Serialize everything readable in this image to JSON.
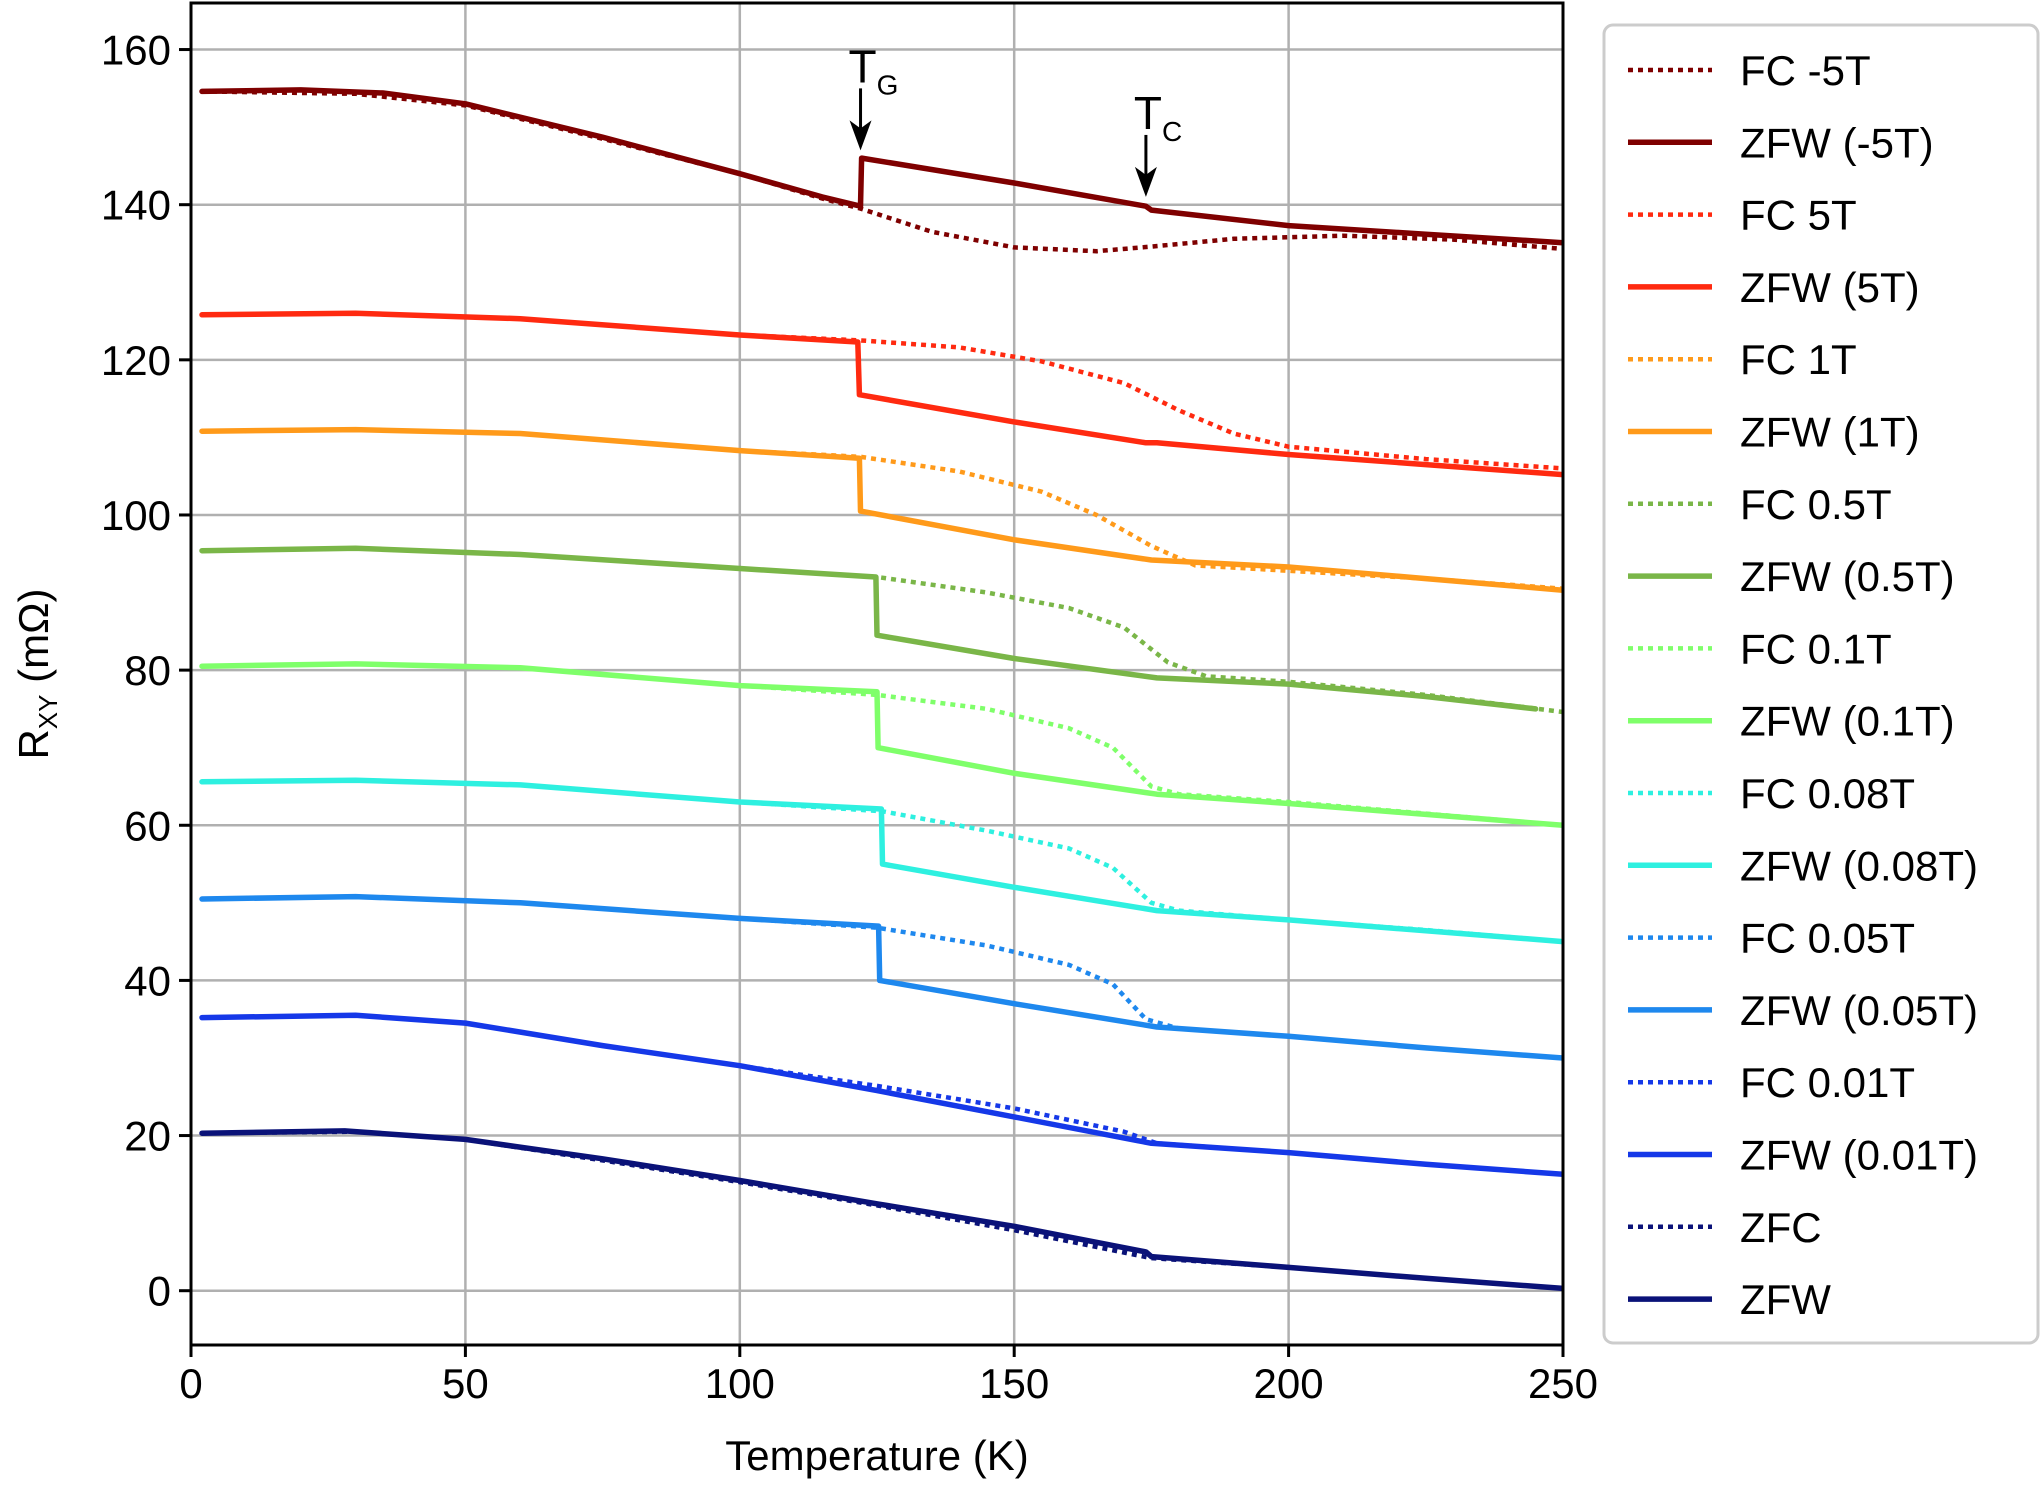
{
  "chart_data": {
    "type": "line",
    "xlabel": "Temperature (K)",
    "ylabel": {
      "main": "R",
      "sub": "XY",
      "unit": " (mΩ)"
    },
    "xlim": [
      0,
      250
    ],
    "ylim": [
      -7,
      166
    ],
    "xticks": [
      0,
      50,
      100,
      150,
      200,
      250
    ],
    "yticks": [
      0,
      20,
      40,
      60,
      80,
      100,
      120,
      140,
      160
    ],
    "grid": true,
    "legend_position": "outside-right",
    "annotations": [
      {
        "main": "T",
        "sub": "G",
        "x": 122,
        "y_tip": 147
      },
      {
        "main": "T",
        "sub": "C",
        "x": 174,
        "y_tip": 141
      }
    ],
    "series": [
      {
        "name": "FC -5T",
        "style": "dotted",
        "color": "#7f0000",
        "points": [
          [
            2,
            154.6
          ],
          [
            30,
            154.3
          ],
          [
            50,
            152.8
          ],
          [
            75,
            148.5
          ],
          [
            100,
            144
          ],
          [
            115,
            140.8
          ],
          [
            122,
            139.5
          ],
          [
            135,
            136.5
          ],
          [
            150,
            134.5
          ],
          [
            165,
            134
          ],
          [
            175,
            134.6
          ],
          [
            190,
            135.6
          ],
          [
            210,
            136
          ],
          [
            230,
            135.5
          ],
          [
            250,
            134.3
          ]
        ]
      },
      {
        "name": "ZFW (-5T)",
        "style": "solid",
        "color": "#7f0000",
        "points": [
          [
            2,
            154.6
          ],
          [
            20,
            154.8
          ],
          [
            35,
            154.4
          ],
          [
            50,
            153
          ],
          [
            75,
            148.7
          ],
          [
            100,
            144
          ],
          [
            115,
            141
          ],
          [
            122,
            139.8
          ],
          [
            122.2,
            146
          ],
          [
            150,
            142.8
          ],
          [
            174,
            139.8
          ],
          [
            175,
            139.3
          ],
          [
            200,
            137.3
          ],
          [
            225,
            136.2
          ],
          [
            250,
            135.1
          ]
        ]
      },
      {
        "name": "FC 5T",
        "style": "dotted",
        "color": "#ff2a10",
        "points": [
          [
            2,
            125.8
          ],
          [
            30,
            126
          ],
          [
            60,
            125.3
          ],
          [
            100,
            123.2
          ],
          [
            122,
            122.5
          ],
          [
            140,
            121.6
          ],
          [
            155,
            119.8
          ],
          [
            170,
            117
          ],
          [
            180,
            113.5
          ],
          [
            190,
            110.5
          ],
          [
            200,
            108.8
          ],
          [
            225,
            107.2
          ],
          [
            250,
            106
          ]
        ]
      },
      {
        "name": "ZFW (5T)",
        "style": "solid",
        "color": "#ff2a10",
        "points": [
          [
            2,
            125.8
          ],
          [
            30,
            126
          ],
          [
            60,
            125.3
          ],
          [
            100,
            123.2
          ],
          [
            121.5,
            122.3
          ],
          [
            121.8,
            115.5
          ],
          [
            150,
            112
          ],
          [
            174,
            109.3
          ],
          [
            176,
            109.3
          ],
          [
            200,
            107.8
          ],
          [
            225,
            106.5
          ],
          [
            250,
            105.2
          ]
        ]
      },
      {
        "name": "FC 1T",
        "style": "dotted",
        "color": "#ff9a1a",
        "points": [
          [
            2,
            110.8
          ],
          [
            30,
            111
          ],
          [
            60,
            110.5
          ],
          [
            100,
            108.3
          ],
          [
            122,
            107.5
          ],
          [
            140,
            105.6
          ],
          [
            155,
            103
          ],
          [
            165,
            100
          ],
          [
            175,
            96
          ],
          [
            183,
            93.5
          ],
          [
            200,
            92.8
          ],
          [
            225,
            91.8
          ],
          [
            250,
            90.5
          ]
        ]
      },
      {
        "name": "ZFW (1T)",
        "style": "solid",
        "color": "#ff9a1a",
        "points": [
          [
            2,
            110.8
          ],
          [
            30,
            111
          ],
          [
            60,
            110.5
          ],
          [
            100,
            108.3
          ],
          [
            121.8,
            107.3
          ],
          [
            122,
            100.5
          ],
          [
            150,
            96.8
          ],
          [
            175,
            94.2
          ],
          [
            200,
            93.3
          ],
          [
            225,
            91.8
          ],
          [
            250,
            90.3
          ]
        ]
      },
      {
        "name": "FC 0.5T",
        "style": "dotted",
        "color": "#7ab648",
        "points": [
          [
            2,
            95.4
          ],
          [
            30,
            95.7
          ],
          [
            60,
            94.9
          ],
          [
            100,
            93.1
          ],
          [
            125,
            92
          ],
          [
            145,
            90
          ],
          [
            160,
            88
          ],
          [
            170,
            85.5
          ],
          [
            178,
            81
          ],
          [
            185,
            79.2
          ],
          [
            200,
            78.5
          ],
          [
            225,
            76.8
          ],
          [
            250,
            74.6
          ]
        ]
      },
      {
        "name": "ZFW (0.5T)",
        "style": "solid",
        "color": "#7ab648",
        "points": [
          [
            2,
            95.4
          ],
          [
            30,
            95.7
          ],
          [
            60,
            94.9
          ],
          [
            100,
            93.1
          ],
          [
            124.8,
            92
          ],
          [
            125,
            84.5
          ],
          [
            150,
            81.5
          ],
          [
            176,
            79
          ],
          [
            200,
            78.2
          ],
          [
            225,
            76.6
          ],
          [
            245,
            75
          ]
        ]
      },
      {
        "name": "FC 0.1T",
        "style": "dotted",
        "color": "#7fff6a",
        "points": [
          [
            2,
            80.5
          ],
          [
            30,
            80.8
          ],
          [
            60,
            80.3
          ],
          [
            100,
            78
          ],
          [
            125,
            76.8
          ],
          [
            145,
            75
          ],
          [
            160,
            72.5
          ],
          [
            168,
            70
          ],
          [
            175,
            65
          ],
          [
            180,
            64
          ],
          [
            200,
            63
          ],
          [
            225,
            61.5
          ],
          [
            250,
            60
          ]
        ]
      },
      {
        "name": "ZFW (0.1T)",
        "style": "solid",
        "color": "#7fff6a",
        "points": [
          [
            2,
            80.5
          ],
          [
            30,
            80.8
          ],
          [
            60,
            80.3
          ],
          [
            100,
            78
          ],
          [
            125,
            77.2
          ],
          [
            125.2,
            70
          ],
          [
            150,
            66.7
          ],
          [
            176,
            64
          ],
          [
            200,
            62.8
          ],
          [
            225,
            61.4
          ],
          [
            250,
            60
          ]
        ]
      },
      {
        "name": "FC 0.08T",
        "style": "dotted",
        "color": "#2ef0e0",
        "points": [
          [
            2,
            65.6
          ],
          [
            30,
            65.8
          ],
          [
            60,
            65.2
          ],
          [
            100,
            63
          ],
          [
            126,
            61.8
          ],
          [
            145,
            59.3
          ],
          [
            160,
            57
          ],
          [
            168,
            54.5
          ],
          [
            175,
            50
          ],
          [
            180,
            49
          ],
          [
            200,
            47.8
          ],
          [
            225,
            46.5
          ],
          [
            250,
            45
          ]
        ]
      },
      {
        "name": "ZFW (0.08T)",
        "style": "solid",
        "color": "#2ef0e0",
        "points": [
          [
            2,
            65.6
          ],
          [
            30,
            65.8
          ],
          [
            60,
            65.2
          ],
          [
            100,
            63
          ],
          [
            125.8,
            62.1
          ],
          [
            126,
            55
          ],
          [
            150,
            52
          ],
          [
            176,
            49
          ],
          [
            200,
            47.8
          ],
          [
            225,
            46.4
          ],
          [
            250,
            45
          ]
        ]
      },
      {
        "name": "FC 0.05T",
        "style": "dotted",
        "color": "#1e88ee",
        "points": [
          [
            2,
            50.5
          ],
          [
            30,
            50.8
          ],
          [
            60,
            50
          ],
          [
            100,
            48
          ],
          [
            125,
            46.8
          ],
          [
            145,
            44.5
          ],
          [
            160,
            42
          ],
          [
            168,
            39.5
          ],
          [
            174,
            35
          ],
          [
            180,
            33.8
          ],
          [
            200,
            32.8
          ],
          [
            225,
            31.3
          ],
          [
            250,
            30
          ]
        ]
      },
      {
        "name": "ZFW (0.05T)",
        "style": "solid",
        "color": "#1e88ee",
        "points": [
          [
            2,
            50.5
          ],
          [
            30,
            50.8
          ],
          [
            60,
            50
          ],
          [
            100,
            48
          ],
          [
            125.3,
            47
          ],
          [
            125.5,
            40
          ],
          [
            150,
            37
          ],
          [
            176,
            34
          ],
          [
            200,
            32.8
          ],
          [
            225,
            31.3
          ],
          [
            250,
            30
          ]
        ]
      },
      {
        "name": "FC 0.01T",
        "style": "dotted",
        "color": "#1538e8",
        "points": [
          [
            2,
            35.2
          ],
          [
            30,
            35.5
          ],
          [
            50,
            34.5
          ],
          [
            75,
            31.6
          ],
          [
            100,
            29
          ],
          [
            125,
            26.4
          ],
          [
            150,
            23.5
          ],
          [
            170,
            20.5
          ],
          [
            176,
            19
          ],
          [
            200,
            17.8
          ],
          [
            225,
            16.3
          ],
          [
            250,
            15
          ]
        ]
      },
      {
        "name": "ZFW (0.01T)",
        "style": "solid",
        "color": "#1538e8",
        "points": [
          [
            2,
            35.2
          ],
          [
            30,
            35.5
          ],
          [
            50,
            34.5
          ],
          [
            75,
            31.6
          ],
          [
            100,
            29
          ],
          [
            125,
            25.8
          ],
          [
            150,
            22.4
          ],
          [
            175,
            19
          ],
          [
            200,
            17.8
          ],
          [
            225,
            16.3
          ],
          [
            250,
            15
          ]
        ]
      },
      {
        "name": "ZFC",
        "style": "dotted",
        "color": "#0a1278",
        "points": [
          [
            2,
            20.3
          ],
          [
            30,
            20.5
          ],
          [
            50,
            19.5
          ],
          [
            75,
            16.8
          ],
          [
            100,
            14
          ],
          [
            125,
            11
          ],
          [
            150,
            7.8
          ],
          [
            175,
            4.2
          ],
          [
            200,
            3
          ],
          [
            225,
            1.6
          ],
          [
            250,
            0.3
          ]
        ]
      },
      {
        "name": "ZFW",
        "style": "solid",
        "color": "#0a1278",
        "points": [
          [
            2,
            20.3
          ],
          [
            28,
            20.6
          ],
          [
            50,
            19.5
          ],
          [
            75,
            17
          ],
          [
            100,
            14.2
          ],
          [
            125,
            11.2
          ],
          [
            150,
            8.3
          ],
          [
            174,
            5
          ],
          [
            175,
            4.4
          ],
          [
            200,
            3
          ],
          [
            225,
            1.6
          ],
          [
            250,
            0.3
          ]
        ]
      }
    ]
  }
}
